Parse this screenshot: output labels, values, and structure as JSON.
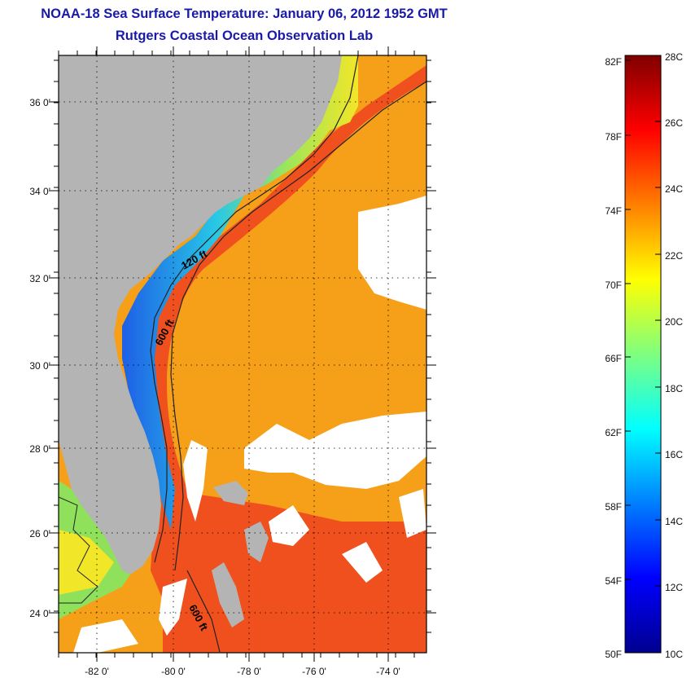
{
  "header": {
    "title": "NOAA-18 Sea Surface Temperature:  January 06, 2012 1952 GMT",
    "subtitle": "Rutgers Coastal Ocean Observation Lab"
  },
  "map": {
    "lon_ticks": [
      "-82 0'",
      "-80 0'",
      "-78 0'",
      "-76 0'",
      "-74 0'"
    ],
    "lat_ticks": [
      "36 0'",
      "34 0'",
      "32 0'",
      "30 0'",
      "28 0'",
      "26 0'",
      "24 0'"
    ],
    "contour_labels": [
      "120 ft",
      "600 ft",
      "600 ft"
    ],
    "colors": {
      "land": "#b4b4b4",
      "cloud": "#ffffff",
      "gulf_stream": "#f0501e",
      "offshore": "#f6a019",
      "shelf": "#f2e628",
      "cold_coast": "#1e5fe6",
      "very_cold": "#0a1e8c"
    }
  },
  "colorbar": {
    "fahrenheit_labels": [
      "82F",
      "78F",
      "74F",
      "70F",
      "66F",
      "62F",
      "58F",
      "54F",
      "50F"
    ],
    "celsius_labels": [
      "28C",
      "26C",
      "24C",
      "22C",
      "20C",
      "18C",
      "16C",
      "14C",
      "12C",
      "10C"
    ],
    "celsius_range": [
      10,
      28
    ],
    "fahrenheit_range": [
      50,
      82.4
    ],
    "gradient": [
      "#00008f",
      "#0000ff",
      "#007fff",
      "#00ffff",
      "#7fff7f",
      "#ffff00",
      "#ff7f00",
      "#ff0000",
      "#7f0000"
    ]
  }
}
